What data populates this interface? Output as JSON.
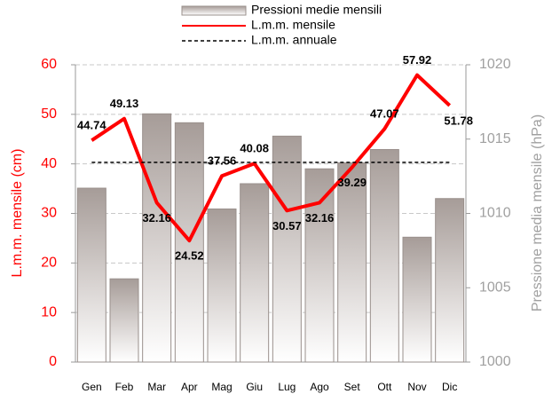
{
  "chart_data": {
    "type": "combo",
    "categories": [
      "Gen",
      "Feb",
      "Mar",
      "Apr",
      "Mag",
      "Giu",
      "Lug",
      "Ago",
      "Set",
      "Ott",
      "Nov",
      "Dic"
    ],
    "ylabel": "L.m.m. mensile (cm)",
    "y2label": "Pressione media mensile (hPa)",
    "ylim": [
      0,
      60
    ],
    "yticks": [
      0,
      10,
      20,
      30,
      40,
      50,
      60
    ],
    "y2lim": [
      1000,
      1020
    ],
    "y2ticks": [
      1000,
      1005,
      1010,
      1015,
      1020
    ],
    "grid": true,
    "legend": "top",
    "series": [
      {
        "name": "Pressioni medie mensili",
        "type": "bar",
        "axis": "y2",
        "color": "#b5aca8",
        "values": [
          1011.7,
          1005.6,
          1016.7,
          1016.1,
          1010.3,
          1012.0,
          1015.2,
          1013.0,
          1013.4,
          1014.3,
          1008.4,
          1011.0
        ]
      },
      {
        "name": "L.m.m. mensile",
        "type": "line",
        "color": "#ff0000",
        "values": [
          44.74,
          49.13,
          32.16,
          24.52,
          37.56,
          40.08,
          30.57,
          32.16,
          39.29,
          47.07,
          57.92,
          51.78
        ]
      },
      {
        "name": "L.m.m. annuale",
        "type": "dashed",
        "color": "#000000",
        "values": [
          40.3,
          40.3,
          40.3,
          40.3,
          40.3,
          40.3,
          40.3,
          40.3,
          40.3,
          40.3,
          40.3,
          40.3
        ]
      }
    ]
  }
}
